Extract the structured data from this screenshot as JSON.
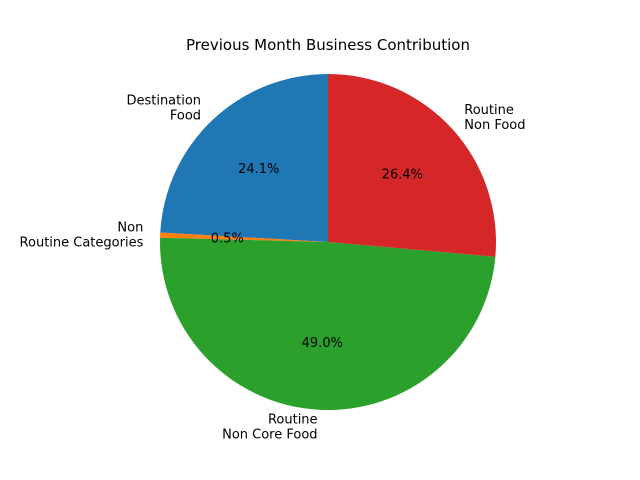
{
  "chart_data": {
    "type": "pie",
    "title": "Previous Month Business Contribution",
    "start_angle_deg": 90,
    "direction": "counterclockwise",
    "slices": [
      {
        "label": [
          "Destination",
          "Food"
        ],
        "value": 24.1,
        "display": "24.1%",
        "color": "#1f77b4"
      },
      {
        "label": [
          "Non",
          "Routine Categories"
        ],
        "value": 0.5,
        "display": "0.5%",
        "color": "#ff7f0e"
      },
      {
        "label": [
          "Routine",
          "Non Core Food"
        ],
        "value": 49.0,
        "display": "49.0%",
        "color": "#2ca02c"
      },
      {
        "label": [
          "Routine",
          "Non Food"
        ],
        "value": 26.4,
        "display": "26.4%",
        "color": "#d62728"
      }
    ]
  }
}
